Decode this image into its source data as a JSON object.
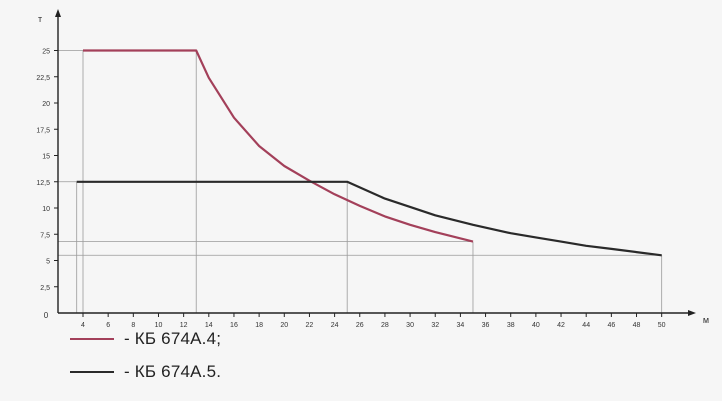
{
  "chart_data": {
    "type": "line",
    "x_axis_unit": "м",
    "y_axis_unit": "т",
    "x_ticks": [
      4,
      6,
      8,
      10,
      12,
      14,
      16,
      18,
      20,
      22,
      24,
      26,
      28,
      30,
      32,
      34,
      36,
      38,
      40,
      42,
      44,
      46,
      48,
      50
    ],
    "y_ticks": [
      "2,5",
      "5",
      "7,5",
      "10",
      "12,5",
      "15",
      "17,5",
      "20",
      "22,5",
      "25"
    ],
    "origin_label": "0",
    "xlim": [
      0,
      52
    ],
    "ylim": [
      0,
      27
    ],
    "series": [
      {
        "name": "КБ 674А.4",
        "color": "#a3405a",
        "x": [
          4,
          13,
          14,
          16,
          18,
          20,
          22,
          24,
          26,
          28,
          30,
          32,
          35
        ],
        "y": [
          25,
          25,
          22.4,
          18.6,
          15.9,
          14.0,
          12.6,
          11.3,
          10.2,
          9.2,
          8.4,
          7.7,
          6.8
        ]
      },
      {
        "name": "КБ 674А.5",
        "color": "#2a2a2a",
        "x": [
          3.5,
          25,
          28,
          30,
          32,
          35,
          38,
          40,
          42,
          44,
          46,
          48,
          50
        ],
        "y": [
          12.5,
          12.5,
          10.9,
          10.1,
          9.3,
          8.4,
          7.6,
          7.2,
          6.8,
          6.4,
          6.1,
          5.8,
          5.5
        ]
      }
    ],
    "reference_lines": {
      "vertical_x": [
        3.5,
        13,
        25,
        35,
        50
      ],
      "horizontal_y": [
        6.8,
        12.5,
        25
      ]
    }
  },
  "legend": [
    {
      "label": "- КБ 674А.4;",
      "color": "#a3405a"
    },
    {
      "label": "- КБ 674А.5.",
      "color": "#2a2a2a"
    }
  ]
}
